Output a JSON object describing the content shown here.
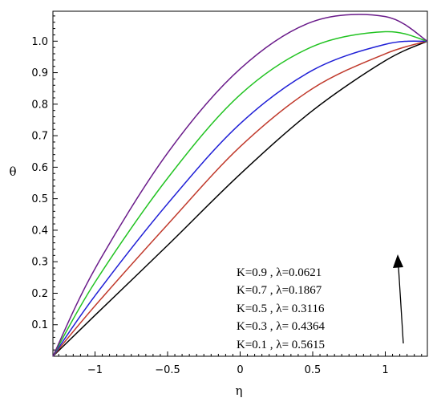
{
  "chart_data": {
    "type": "line",
    "xlabel": "η",
    "ylabel": "θ",
    "xlim": [
      -1.29,
      1.29
    ],
    "ylim": [
      0,
      1.1
    ],
    "x_ticks": [
      {
        "value": -1,
        "label": "−1"
      },
      {
        "value": -0.5,
        "label": "−0.5"
      },
      {
        "value": 0,
        "label": "0"
      },
      {
        "value": 0.5,
        "label": "0.5"
      },
      {
        "value": 1,
        "label": "1"
      }
    ],
    "y_ticks": [
      {
        "value": 0.1,
        "label": "0.1"
      },
      {
        "value": 0.2,
        "label": "0.2"
      },
      {
        "value": 0.3,
        "label": "0.3"
      },
      {
        "value": 0.4,
        "label": "0.4"
      },
      {
        "value": 0.5,
        "label": "0.5"
      },
      {
        "value": 0.6,
        "label": "0.6"
      },
      {
        "value": 0.7,
        "label": "0.7"
      },
      {
        "value": 0.8,
        "label": "0.8"
      },
      {
        "value": 0.9,
        "label": "0.9"
      },
      {
        "value": 1.0,
        "label": "1.0"
      }
    ],
    "x": [
      -1.29,
      -1.0,
      -0.5,
      0.0,
      0.5,
      1.0,
      1.29
    ],
    "series": [
      {
        "color": "#000000",
        "values": [
          0.0,
          0.13,
          0.352,
          0.578,
          0.78,
          0.938,
          1.0
        ]
      },
      {
        "color": "#c0392b",
        "values": [
          0.0,
          0.16,
          0.418,
          0.665,
          0.85,
          0.96,
          1.0
        ]
      },
      {
        "color": "#1f1fd6",
        "values": [
          0.0,
          0.192,
          0.484,
          0.738,
          0.908,
          0.99,
          1.0
        ]
      },
      {
        "color": "#22c322",
        "values": [
          0.0,
          0.235,
          0.565,
          0.83,
          0.983,
          1.03,
          1.0
        ]
      },
      {
        "color": "#6a1b8a",
        "values": [
          0.0,
          0.278,
          0.645,
          0.912,
          1.062,
          1.078,
          1.0
        ]
      }
    ],
    "legend": [
      "K=0.9  , λ=0.0621",
      "K=0.7  , λ=0.1867",
      "K=0.5  , λ= 0.3116",
      "K=0.3  , λ= 0.4364",
      "K=0.1  , λ= 0.5615"
    ],
    "legend_position": "bottom-right",
    "annotation": {
      "type": "arrow",
      "direction": "up",
      "meaning": "increasing K"
    },
    "grid": false
  }
}
